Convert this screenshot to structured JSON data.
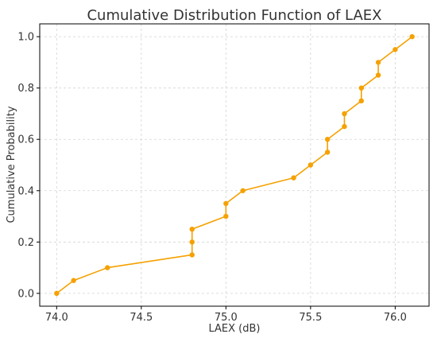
{
  "chart_data": {
    "type": "line",
    "title": "Cumulative Distribution Function of LAEX",
    "xlabel": "LAEX (dB)",
    "ylabel": "Cumulative Probability",
    "xlim": [
      73.9,
      76.2
    ],
    "ylim": [
      -0.05,
      1.05
    ],
    "x_ticks": [
      74.0,
      74.5,
      75.0,
      75.5,
      76.0
    ],
    "y_ticks": [
      0.0,
      0.2,
      0.4,
      0.6,
      0.8,
      1.0
    ],
    "x_tick_labels": [
      "74.0",
      "74.5",
      "75.0",
      "75.5",
      "76.0"
    ],
    "y_tick_labels": [
      "0.0",
      "0.2",
      "0.4",
      "0.6",
      "0.8",
      "1.0"
    ],
    "grid": true,
    "color": "#F5A100",
    "series": [
      {
        "x": [
          74.0,
          74.1,
          74.3,
          74.8,
          74.8,
          74.8,
          75.0,
          75.0,
          75.1,
          75.4,
          75.5,
          75.6,
          75.6,
          75.7,
          75.7,
          75.8,
          75.8,
          75.9,
          75.9,
          76.0,
          76.1
        ],
        "y": [
          0.0,
          0.05,
          0.1,
          0.15,
          0.2,
          0.25,
          0.3,
          0.35,
          0.4,
          0.45,
          0.5,
          0.55,
          0.6,
          0.65,
          0.7,
          0.75,
          0.8,
          0.85,
          0.9,
          0.95,
          1.0
        ]
      }
    ]
  }
}
